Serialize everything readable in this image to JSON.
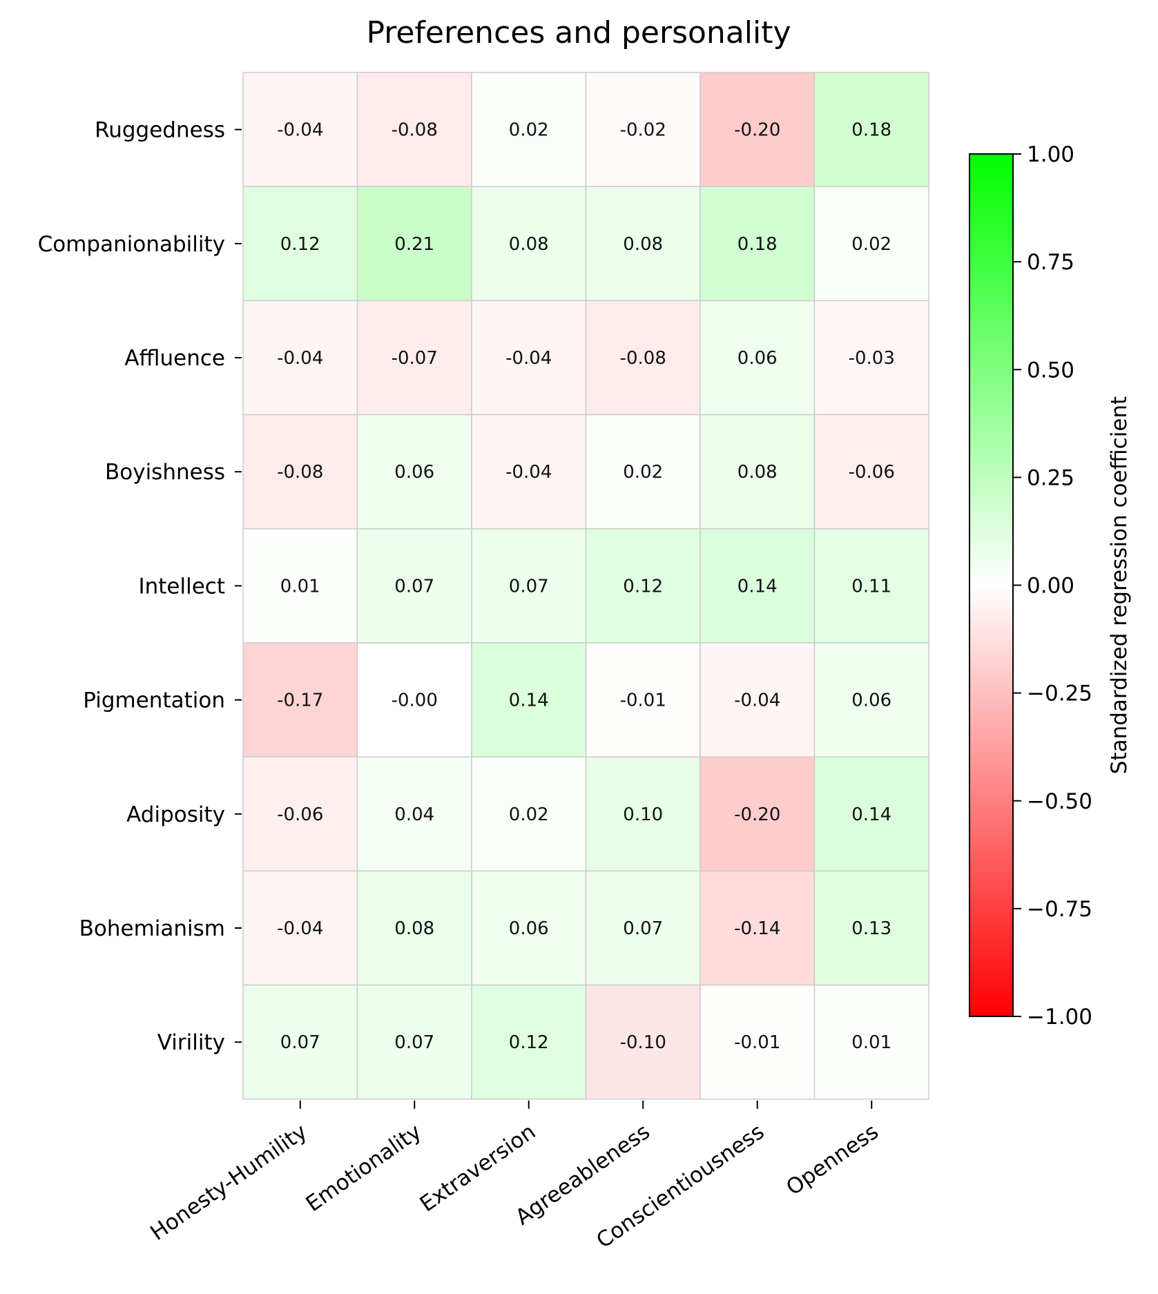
{
  "chart_data": {
    "type": "heatmap",
    "title": "Preferences and personality",
    "rows": [
      "Ruggedness",
      "Companionability",
      "Affluence",
      "Boyishness",
      "Intellect",
      "Pigmentation",
      "Adiposity",
      "Bohemianism",
      "Virility"
    ],
    "columns": [
      "Honesty-Humility",
      "Emotionality",
      "Extraversion",
      "Agreeableness",
      "Conscientiousness",
      "Openness"
    ],
    "values": [
      [
        -0.04,
        -0.08,
        0.02,
        -0.02,
        -0.2,
        0.18
      ],
      [
        0.12,
        0.21,
        0.08,
        0.08,
        0.18,
        0.02
      ],
      [
        -0.04,
        -0.07,
        -0.04,
        -0.08,
        0.06,
        -0.03
      ],
      [
        -0.08,
        0.06,
        -0.04,
        0.02,
        0.08,
        -0.06
      ],
      [
        0.01,
        0.07,
        0.07,
        0.12,
        0.14,
        0.11
      ],
      [
        -0.17,
        -0.0,
        0.14,
        -0.01,
        -0.04,
        0.06
      ],
      [
        -0.06,
        0.04,
        0.02,
        0.1,
        -0.2,
        0.14
      ],
      [
        -0.04,
        0.08,
        0.06,
        0.07,
        -0.14,
        0.13
      ],
      [
        0.07,
        0.07,
        0.12,
        -0.1,
        -0.01,
        0.01
      ]
    ],
    "value_labels": [
      [
        "-0.04",
        "-0.08",
        "0.02",
        "-0.02",
        "-0.20",
        "0.18"
      ],
      [
        "0.12",
        "0.21",
        "0.08",
        "0.08",
        "0.18",
        "0.02"
      ],
      [
        "-0.04",
        "-0.07",
        "-0.04",
        "-0.08",
        "0.06",
        "-0.03"
      ],
      [
        "-0.08",
        "0.06",
        "-0.04",
        "0.02",
        "0.08",
        "-0.06"
      ],
      [
        "0.01",
        "0.07",
        "0.07",
        "0.12",
        "0.14",
        "0.11"
      ],
      [
        "-0.17",
        "-0.00",
        "0.14",
        "-0.01",
        "-0.04",
        "0.06"
      ],
      [
        "-0.06",
        "0.04",
        "0.02",
        "0.10",
        "-0.20",
        "0.14"
      ],
      [
        "-0.04",
        "0.08",
        "0.06",
        "0.07",
        "-0.14",
        "0.13"
      ],
      [
        "0.07",
        "0.07",
        "0.12",
        "-0.10",
        "-0.01",
        "0.01"
      ]
    ],
    "colorbar": {
      "label": "Standardized regression coefficient",
      "range": [
        -1.0,
        1.0
      ],
      "ticks": [
        1.0,
        0.75,
        0.5,
        0.25,
        0.0,
        -0.25,
        -0.5,
        -0.75,
        -1.0
      ],
      "tick_labels": [
        "1.00",
        "0.75",
        "0.50",
        "0.25",
        "0.00",
        "−0.25",
        "−0.50",
        "−0.75",
        "−1.00"
      ],
      "colors": {
        "negative": "#ff0000",
        "zero": "#ffffff",
        "positive": "#00ff00"
      }
    },
    "cell_border_color": "#cccccc"
  }
}
